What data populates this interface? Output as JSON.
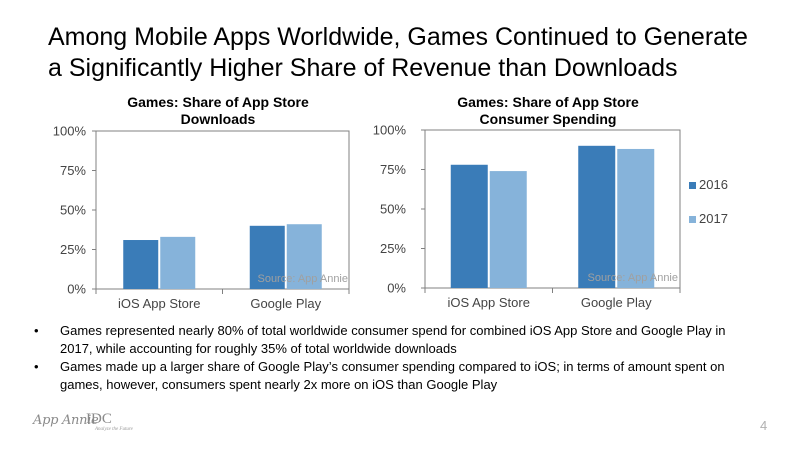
{
  "title": "Among Mobile Apps Worldwide, Games Continued to Generate a Significantly Higher Share of Revenue than Downloads",
  "colors": {
    "series_2016": "#3a7cb8",
    "series_2017": "#86b3da",
    "axis": "#808080",
    "source_text": "#a0a0a0"
  },
  "chart_data": [
    {
      "type": "bar",
      "title": "Games: Share of App Store Downloads",
      "categories": [
        "iOS App Store",
        "Google Play"
      ],
      "series": [
        {
          "name": "2016",
          "values": [
            31,
            40
          ]
        },
        {
          "name": "2017",
          "values": [
            33,
            41
          ]
        }
      ],
      "ylim": [
        0,
        100
      ],
      "yticks": [
        "0%",
        "25%",
        "50%",
        "75%",
        "100%"
      ],
      "yticks_values": [
        0,
        25,
        50,
        75,
        100
      ],
      "source": "Source: App Annie",
      "legend": "none"
    },
    {
      "type": "bar",
      "title": "Games: Share of App Store Consumer Spending",
      "categories": [
        "iOS App Store",
        "Google Play"
      ],
      "series": [
        {
          "name": "2016",
          "values": [
            78,
            90
          ]
        },
        {
          "name": "2017",
          "values": [
            74,
            88
          ]
        }
      ],
      "ylim": [
        0,
        100
      ],
      "yticks": [
        "0%",
        "25%",
        "50%",
        "75%",
        "100%"
      ],
      "yticks_values": [
        0,
        25,
        50,
        75,
        100
      ],
      "source": "Source: App Annie",
      "legend": "right"
    }
  ],
  "bullets": [
    "Games represented nearly 80% of total worldwide consumer spend for combined iOS App Store and Google Play in 2017, while accounting for roughly 35% of total worldwide downloads",
    "Games made up a larger share of Google Play’s consumer spending compared to iOS; in terms of amount spent on games, however, consumers spent nearly 2x more on iOS than Google Play"
  ],
  "bullet_symbol": "•",
  "footer": {
    "logo_app_annie": "App Annie",
    "logo_idc": "IDC",
    "logo_idc_tagline": "Analyze the Future",
    "page_number": "4"
  }
}
